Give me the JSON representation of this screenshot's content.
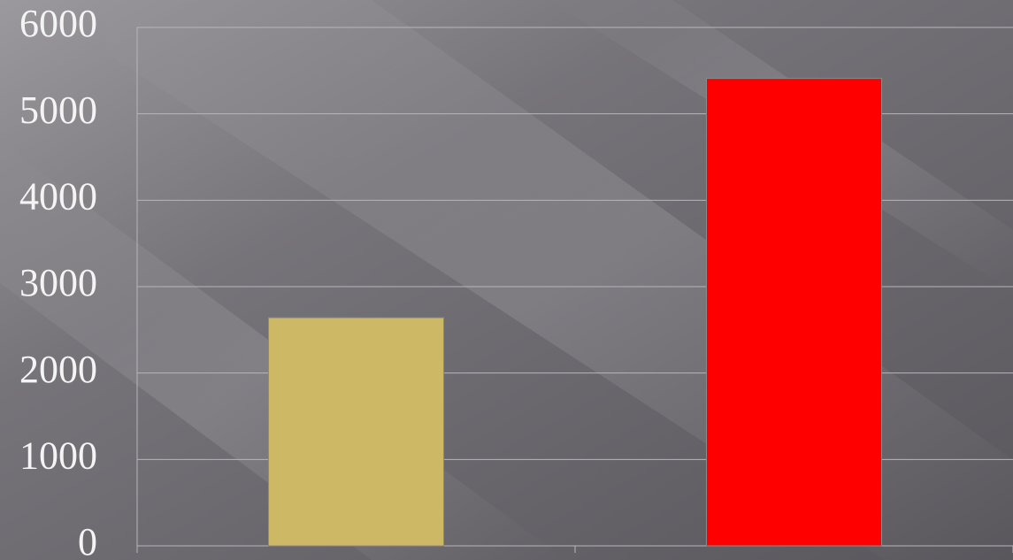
{
  "chart_data": {
    "type": "bar",
    "categories": [
      null,
      null
    ],
    "values": [
      2640,
      5410
    ],
    "colors": [
      "#cdb866",
      "#ff0000"
    ],
    "ylim": [
      0,
      6000
    ],
    "yticks": [
      0,
      1000,
      2000,
      3000,
      4000,
      5000,
      6000
    ],
    "grid": true
  }
}
